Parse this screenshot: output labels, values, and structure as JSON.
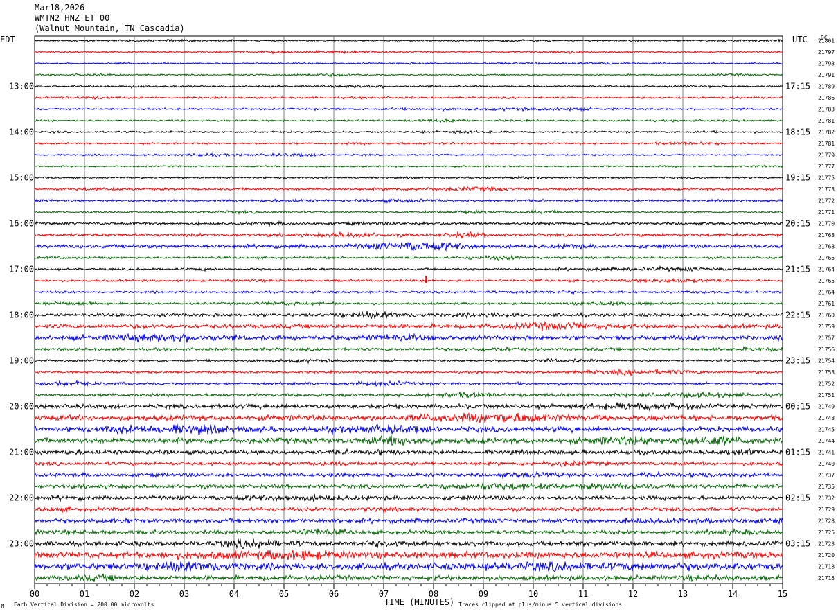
{
  "header": {
    "date": "Mar18,2026",
    "station": "WMTN2 HNZ ET 00",
    "location": "(Walnut Mountain, TN Cascadia)"
  },
  "left_zone_label": "EDT",
  "right_zone_label": "UTC",
  "dc_label": "DC",
  "footer": {
    "scale_note": "Each Vertical Division =  200.00 microvolts",
    "xlabel": "TIME (MINUTES)",
    "clip_note": "Traces clipped at plus/minus 5 vertical divisions",
    "corner_mark": "M"
  },
  "colors": {
    "trace_cycle": [
      "#000000",
      "#ff0000",
      "#0000ff",
      "#006600"
    ],
    "grid": "#808080"
  },
  "chart_data": {
    "type": "line",
    "title": "",
    "xlabel": "TIME (MINUTES)",
    "xlim": [
      0,
      15
    ],
    "x_tick_labels": [
      "00",
      "01",
      "02",
      "03",
      "04",
      "05",
      "06",
      "07",
      "08",
      "09",
      "10",
      "11",
      "12",
      "13",
      "14",
      "15"
    ],
    "minutes_per_row": 15,
    "left_hour_labels": [
      "13:00",
      "14:00",
      "15:00",
      "16:00",
      "17:00",
      "18:00",
      "19:00",
      "20:00",
      "21:00",
      "22:00",
      "23:00"
    ],
    "right_hour_labels": [
      "17:15",
      "18:15",
      "19:15",
      "20:15",
      "21:15",
      "22:15",
      "23:15",
      "00:15",
      "01:15",
      "02:15",
      "03:15"
    ],
    "dc_offsets": [
      21801,
      21797,
      21793,
      21791,
      21789,
      21786,
      21783,
      21781,
      21782,
      21781,
      21779,
      21777,
      21775,
      21773,
      21772,
      21771,
      21770,
      21768,
      21768,
      21765,
      21764,
      21765,
      21764,
      21761,
      21760,
      21759,
      21757,
      21756,
      21754,
      21753,
      21752,
      21751,
      21749,
      21748,
      21745,
      21744,
      21741,
      21740,
      21737,
      21735,
      21732,
      21729,
      21728,
      21725,
      21723,
      21720,
      21718,
      21715
    ],
    "row_noise_amplitude": [
      1.2,
      1.2,
      1.2,
      1.2,
      1.5,
      1.5,
      1.5,
      1.5,
      1.5,
      1.5,
      1.3,
      1.3,
      1.5,
      1.8,
      1.8,
      1.6,
      2.2,
      2.6,
      3.0,
      1.8,
      1.8,
      1.8,
      1.8,
      1.8,
      2.8,
      3.6,
      3.6,
      2.4,
      1.8,
      1.8,
      2.0,
      2.6,
      3.6,
      4.4,
      4.4,
      4.6,
      3.4,
      3.0,
      3.2,
      3.2,
      3.2,
      3.2,
      3.6,
      3.2,
      4.0,
      5.5,
      5.5,
      4.0
    ],
    "spike": {
      "row": 21,
      "minute": 7.85,
      "amplitude_divisions": 4
    }
  }
}
